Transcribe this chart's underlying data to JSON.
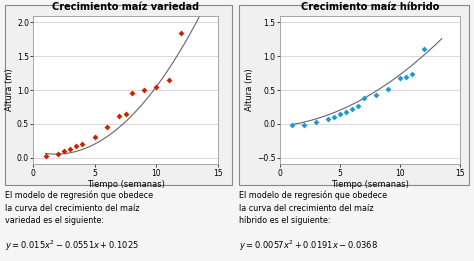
{
  "title1": "Crecimiento maíz variedad",
  "title2": "Crecimiento maíz híbrido",
  "xlabel": "Tiempo (semanas)",
  "ylabel": "Altura (m)",
  "scatter1_x": [
    1,
    2,
    2.5,
    3,
    3.5,
    4,
    5,
    6,
    7,
    7.5,
    8,
    9,
    10,
    11,
    12
  ],
  "scatter1_y": [
    0.02,
    0.05,
    0.1,
    0.13,
    0.17,
    0.2,
    0.3,
    0.45,
    0.62,
    0.65,
    0.95,
    1.0,
    1.05,
    1.15,
    1.85
  ],
  "scatter2_x": [
    1,
    2,
    3,
    4,
    4.5,
    5,
    5.5,
    6,
    6.5,
    7,
    8,
    9,
    10,
    10.5,
    11,
    12
  ],
  "scatter2_y": [
    -0.02,
    -0.01,
    0.03,
    0.07,
    0.1,
    0.14,
    0.17,
    0.22,
    0.27,
    0.38,
    0.42,
    0.52,
    0.68,
    0.7,
    0.73,
    1.1
  ],
  "color1": "#cc2200",
  "color2": "#2299cc",
  "line_color": "#666666",
  "ylim1": [
    -0.1,
    2.1
  ],
  "ylim2": [
    -0.6,
    1.6
  ],
  "xlim": [
    0,
    15
  ],
  "yticks1": [
    0.0,
    0.5,
    1.0,
    1.5,
    2.0
  ],
  "yticks2": [
    -0.5,
    0.0,
    0.5,
    1.0,
    1.5
  ],
  "xticks": [
    0,
    5,
    10,
    15
  ],
  "bg_color": "#ffffff",
  "panel_bg": "#e8e8e8",
  "outer_bg": "#f5f5f5"
}
